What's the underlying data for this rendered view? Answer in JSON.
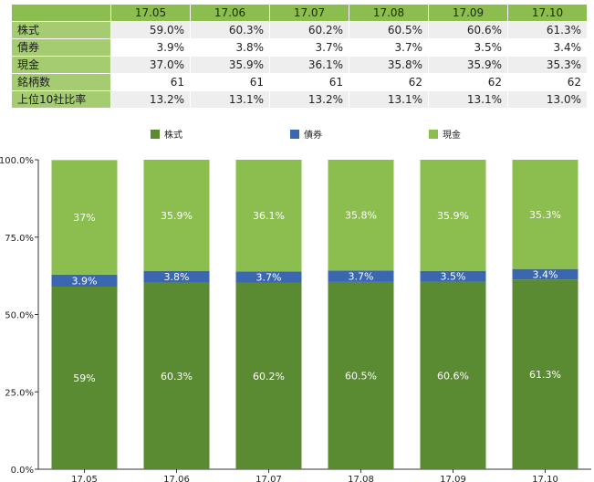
{
  "table": {
    "columns": [
      "17.05",
      "17.06",
      "17.07",
      "17.08",
      "17.09",
      "17.10"
    ],
    "rows": [
      {
        "label": "株式",
        "values": [
          "59.0%",
          "60.3%",
          "60.2%",
          "60.5%",
          "60.6%",
          "61.3%"
        ]
      },
      {
        "label": "債券",
        "values": [
          "3.9%",
          "3.8%",
          "3.7%",
          "3.7%",
          "3.5%",
          "3.4%"
        ]
      },
      {
        "label": "現金",
        "values": [
          "37.0%",
          "35.9%",
          "36.1%",
          "35.8%",
          "35.9%",
          "35.3%"
        ]
      },
      {
        "label": "銘柄数",
        "values": [
          "61",
          "61",
          "61",
          "62",
          "62",
          "62"
        ]
      },
      {
        "label": "上位10社比率",
        "values": [
          "13.2%",
          "13.1%",
          "13.2%",
          "13.1%",
          "13.1%",
          "13.0%"
        ]
      }
    ]
  },
  "chart_data": {
    "type": "bar",
    "stacked": true,
    "categories": [
      "17.05",
      "17.06",
      "17.07",
      "17.08",
      "17.09",
      "17.10"
    ],
    "series": [
      {
        "name": "株式",
        "color": "#5a8a32",
        "values": [
          59,
          60.3,
          60.2,
          60.5,
          60.6,
          61.3
        ],
        "labels": [
          "59%",
          "60.3%",
          "60.2%",
          "60.5%",
          "60.6%",
          "61.3%"
        ]
      },
      {
        "name": "債券",
        "color": "#3a67b0",
        "values": [
          3.9,
          3.8,
          3.7,
          3.7,
          3.5,
          3.4
        ],
        "labels": [
          "3.9%",
          "3.8%",
          "3.7%",
          "3.7%",
          "3.5%",
          "3.4%"
        ]
      },
      {
        "name": "現金",
        "color": "#8bbd4f",
        "values": [
          37,
          35.9,
          36.1,
          35.8,
          35.9,
          35.3
        ],
        "labels": [
          "37%",
          "35.9%",
          "36.1%",
          "35.8%",
          "35.9%",
          "35.3%"
        ]
      }
    ],
    "ylim": [
      0,
      100
    ],
    "yticks": [
      "0.0%",
      "25.0%",
      "50.0%",
      "75.0%",
      "100.0%"
    ],
    "legend": "top",
    "grid": false
  }
}
